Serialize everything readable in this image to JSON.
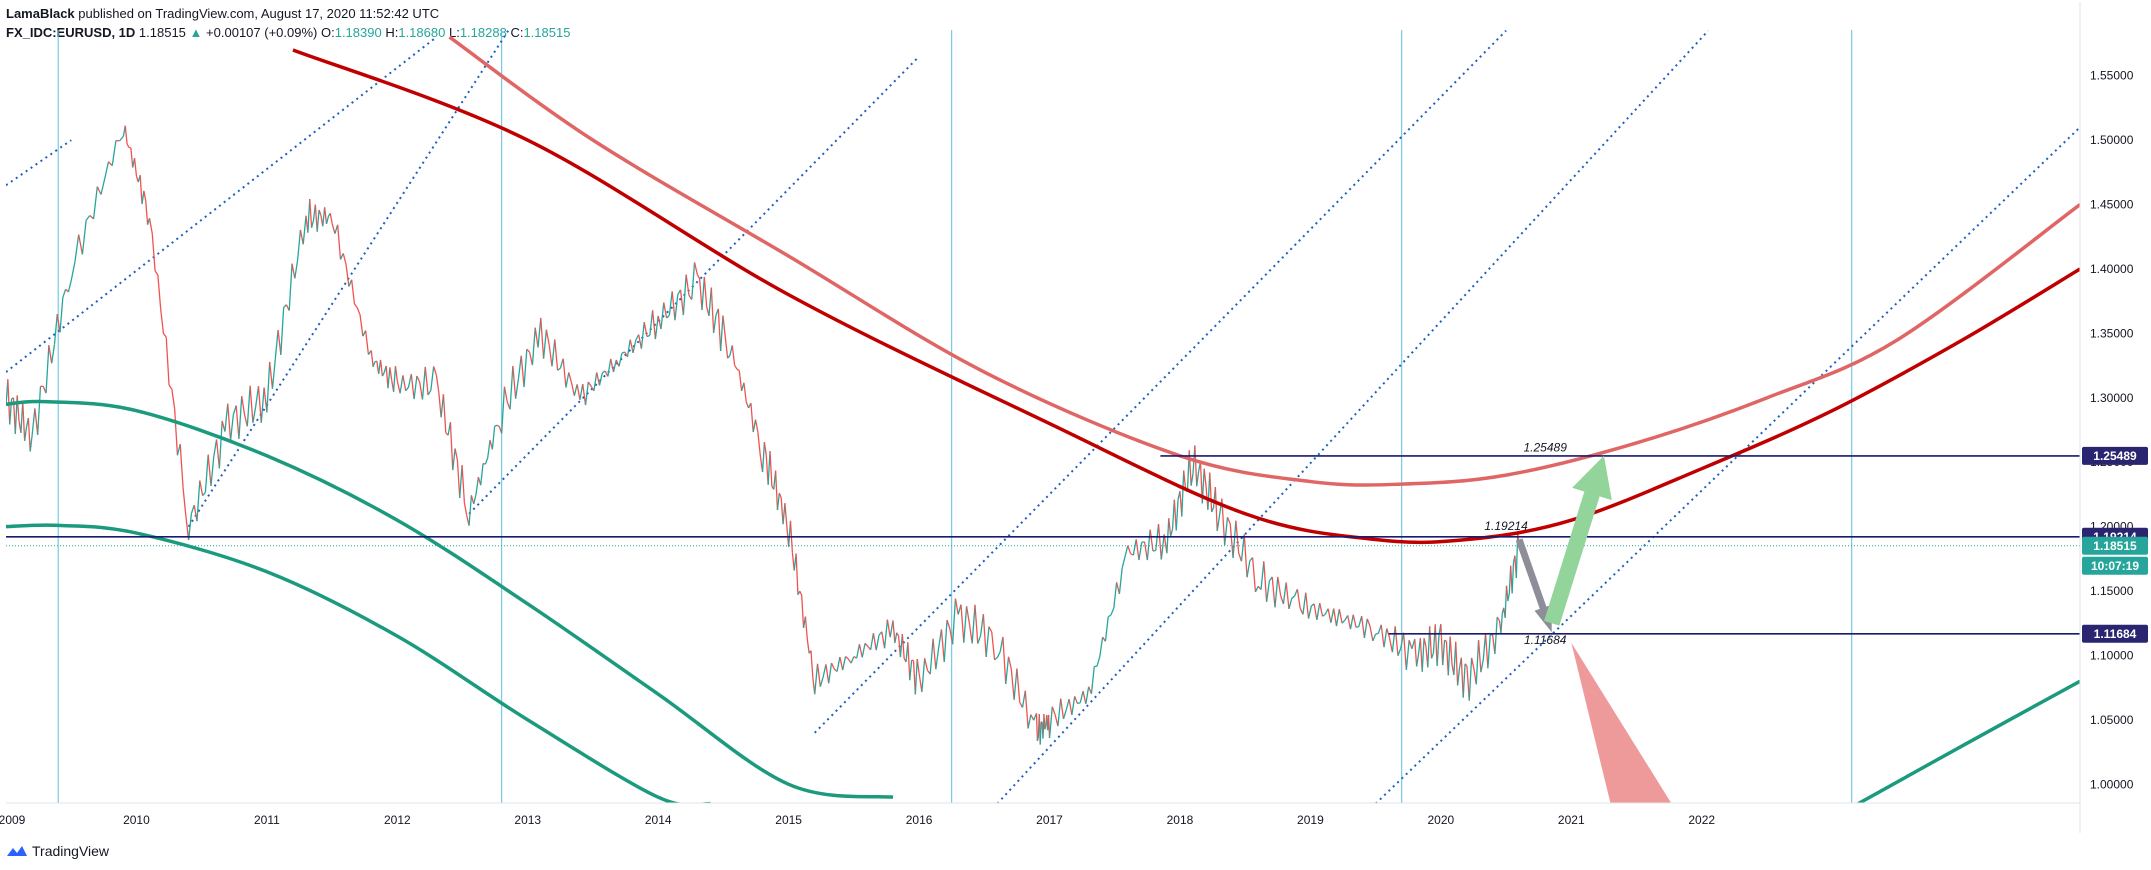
{
  "header": {
    "author": "LamaBlack",
    "published_text": "published on TradingView.com, August 17, 2020 11:52:42 UTC",
    "symbol": "FX_IDC:EURUSD, 1D",
    "last": "1.18515",
    "change_arrow": "▲",
    "change": "+0.00107 (+0.09%)",
    "o_label": "O:",
    "o_value": "1.18390",
    "h_label": "H:",
    "h_value": "1.18680",
    "l_label": "L:",
    "l_value": "1.18288",
    "c_label": "C:",
    "c_value": "1.18515"
  },
  "footer": {
    "brand": "TradingView",
    "logo_icon": "tradingview-logo-icon"
  },
  "colors": {
    "up": "#26a69a",
    "down": "#ef5350",
    "arc_dark": "#c00000",
    "arc_light": "#e06666",
    "arc_green": "#1b9a7d",
    "navy": "#1a1a6e",
    "dotted": "#1f5fbf",
    "vline": "#5bc0de",
    "price_tag": "#26a69a",
    "level_tag": "#2a2570",
    "green_arrow": "#93d49a",
    "gray_arrow": "#8e8e98",
    "red_arrow": "#ef9a9a"
  },
  "chart_data": {
    "type": "line",
    "title": "FX_IDC:EURUSD, 1D",
    "xlabel": "",
    "ylabel": "",
    "xlim": [
      2009.0,
      2024.9
    ],
    "ylim": [
      0.9855,
      1.5855
    ],
    "x_ticks": [
      "2009",
      "2010",
      "2011",
      "2012",
      "2013",
      "2014",
      "2015",
      "2016",
      "2017",
      "2018",
      "2019",
      "2020",
      "2021",
      "2022"
    ],
    "y_ticks": [
      "1.55000",
      "1.50000",
      "1.45000",
      "1.40000",
      "1.35000",
      "1.30000",
      "1.25000",
      "1.20000",
      "1.15000",
      "1.10000",
      "1.05000",
      "1.00000"
    ],
    "series": [
      {
        "name": "EURUSD price (approx.)",
        "x": [
          2009.0,
          2009.2,
          2009.5,
          2009.9,
          2010.1,
          2010.4,
          2010.7,
          2011.0,
          2011.3,
          2011.5,
          2011.8,
          2012.0,
          2012.3,
          2012.55,
          2012.8,
          2013.1,
          2013.4,
          2013.7,
          2014.0,
          2014.3,
          2014.55,
          2014.8,
          2015.0,
          2015.2,
          2015.5,
          2015.8,
          2016.0,
          2016.3,
          2016.6,
          2016.9,
          2017.0,
          2017.3,
          2017.6,
          2017.9,
          2018.1,
          2018.3,
          2018.6,
          2018.9,
          2019.2,
          2019.5,
          2019.8,
          2020.0,
          2020.2,
          2020.45,
          2020.6
        ],
        "values": [
          1.3,
          1.27,
          1.4,
          1.51,
          1.44,
          1.2,
          1.28,
          1.3,
          1.44,
          1.44,
          1.33,
          1.31,
          1.31,
          1.21,
          1.29,
          1.35,
          1.3,
          1.33,
          1.36,
          1.39,
          1.34,
          1.26,
          1.2,
          1.08,
          1.1,
          1.12,
          1.08,
          1.13,
          1.11,
          1.04,
          1.05,
          1.07,
          1.18,
          1.19,
          1.25,
          1.21,
          1.16,
          1.14,
          1.13,
          1.12,
          1.1,
          1.11,
          1.08,
          1.12,
          1.185
        ]
      },
      {
        "name": "Dark red arc",
        "x": [
          2011.2,
          2013.0,
          2015.0,
          2017.0,
          2018.5,
          2019.5,
          2020.2,
          2021.0,
          2022.0,
          2023.0,
          2024.0,
          2024.9
        ],
        "values": [
          1.57,
          1.5,
          1.38,
          1.28,
          1.21,
          1.19,
          1.19,
          1.205,
          1.245,
          1.29,
          1.345,
          1.4
        ]
      },
      {
        "name": "Light red arc",
        "x": [
          2012.4,
          2013.5,
          2015.0,
          2016.5,
          2018.0,
          2019.0,
          2019.7,
          2020.5,
          2021.5,
          2022.5,
          2023.5,
          2024.9
        ],
        "values": [
          1.58,
          1.5,
          1.41,
          1.32,
          1.255,
          1.235,
          1.233,
          1.24,
          1.265,
          1.3,
          1.345,
          1.45
        ]
      },
      {
        "name": "Green arc 1",
        "x": [
          2009.0,
          2009.3,
          2010.0,
          2011.0,
          2012.0,
          2013.0,
          2014.0,
          2015.0,
          2015.8
        ],
        "values": [
          1.295,
          1.297,
          1.29,
          1.255,
          1.205,
          1.14,
          1.07,
          1.0,
          0.99
        ]
      },
      {
        "name": "Green arc 2",
        "x": [
          2009.0,
          2009.4,
          2010.0,
          2011.0,
          2012.0,
          2013.0,
          2014.0,
          2014.4
        ],
        "values": [
          1.2,
          1.201,
          1.195,
          1.165,
          1.115,
          1.05,
          0.99,
          0.985
        ]
      },
      {
        "name": "Green arc 3",
        "x": [
          2023.2,
          2024.0,
          2024.9
        ],
        "values": [
          0.985,
          1.03,
          1.08
        ]
      }
    ],
    "levels": [
      {
        "name": "Resistance",
        "value": 1.25489,
        "label": "1.25489"
      },
      {
        "name": "Resistance",
        "value": 1.19214,
        "label": "1.19214"
      },
      {
        "name": "Support",
        "value": 1.11684,
        "label": "1.11684"
      }
    ],
    "current_price": {
      "value": 1.18515,
      "label": "1.18515",
      "countdown": "10:07:19"
    },
    "annotations": [
      {
        "text": "1.25489",
        "x": 2020.8,
        "y": 1.2585
      },
      {
        "text": "1.19214",
        "x": 2020.5,
        "y": 1.1975
      },
      {
        "text": "1.11684",
        "x": 2020.8,
        "y": 1.109
      }
    ],
    "arrows": [
      {
        "name": "gray-down-arrow",
        "from": [
          2020.6,
          1.19
        ],
        "to": [
          2020.85,
          1.118
        ]
      },
      {
        "name": "green-up-arrow",
        "from": [
          2020.85,
          1.125
        ],
        "to": [
          2021.25,
          1.255
        ]
      },
      {
        "name": "red-down-arrow",
        "from": [
          2021.0,
          1.11
        ],
        "to": [
          2021.6,
          0.985
        ]
      }
    ],
    "vertical_lines_x": [
      2009.4,
      2012.8,
      2016.25,
      2019.7,
      2023.15
    ],
    "channel_lines": [
      {
        "from": [
          2009.0,
          1.465
        ],
        "to": [
          2009.5,
          1.5
        ]
      },
      {
        "from": [
          2009.0,
          1.32
        ],
        "to": [
          2012.3,
          1.58
        ]
      },
      {
        "from": [
          2010.4,
          1.2
        ],
        "to": [
          2012.85,
          1.585
        ]
      },
      {
        "from": [
          2012.55,
          1.21
        ],
        "to": [
          2016.0,
          1.565
        ]
      },
      {
        "from": [
          2015.2,
          1.04
        ],
        "to": [
          2020.5,
          1.585
        ]
      },
      {
        "from": [
          2016.6,
          0.985
        ],
        "to": [
          2022.05,
          1.585
        ]
      },
      {
        "from": [
          2019.5,
          0.985
        ],
        "to": [
          2024.9,
          1.51
        ]
      }
    ]
  }
}
